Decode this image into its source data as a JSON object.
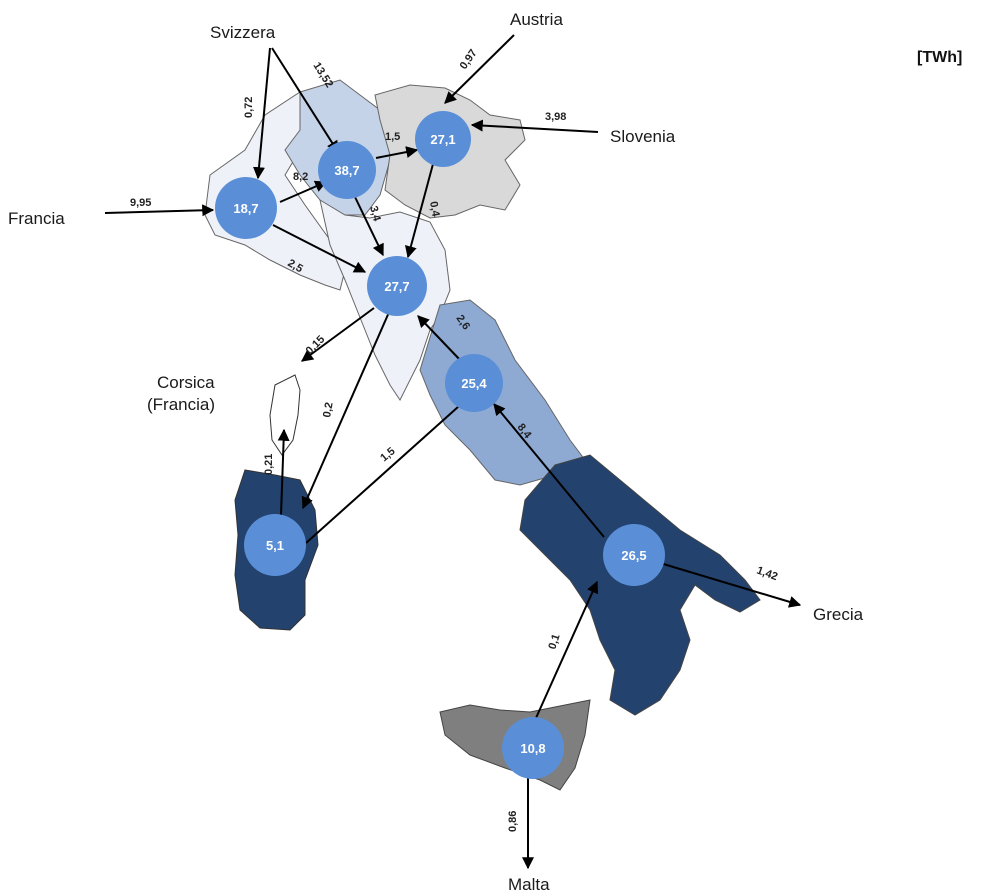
{
  "unit": "[TWh]",
  "colors": {
    "nord": "#eef2f8",
    "centro_nord": "#c5d3e8",
    "alpine": "#d9d9d9",
    "centro_sud": "#8eaad3",
    "sud": "#23426e",
    "sicilia": "#7f7f7f",
    "sardegna": "#23426e",
    "node": "#5a8fd8"
  },
  "zones": {
    "nord_ovest": "18,7",
    "nord": "38,7",
    "nord_est": "27,1",
    "centro_nord": "27,7",
    "centro_sud": "25,4",
    "sud": "26,5",
    "sardegna": "5,1",
    "sicilia": "10,8"
  },
  "countries": {
    "svizzera": "Svizzera",
    "austria": "Austria",
    "slovenia": "Slovenia",
    "francia": "Francia",
    "corsica_1": "Corsica",
    "corsica_2": "(Francia)",
    "grecia": "Grecia",
    "malta": "Malta"
  },
  "flows": {
    "svizzera_nord_ovest": "0,72",
    "svizzera_nord": "13,52",
    "austria": "0,97",
    "slovenia": "3,98",
    "francia": "9,95",
    "nord_ovest_nord": "8,2",
    "nord_nord_est": "1,5",
    "nord_centro_nord": "3,4",
    "nord_est_centro_nord": "0,4",
    "nord_ovest_centro_nord": "2,5",
    "centro_nord_corsica": "0,15",
    "centro_sud_centro_nord": "2,6",
    "centro_nord_sardegna": "0,2",
    "sardegna_corsica": "0,21",
    "sardegna_centro_sud": "1,5",
    "sud_centro_sud": "8,4",
    "grecia": "1,42",
    "sicilia_sud": "0,1",
    "malta": "0,86"
  }
}
